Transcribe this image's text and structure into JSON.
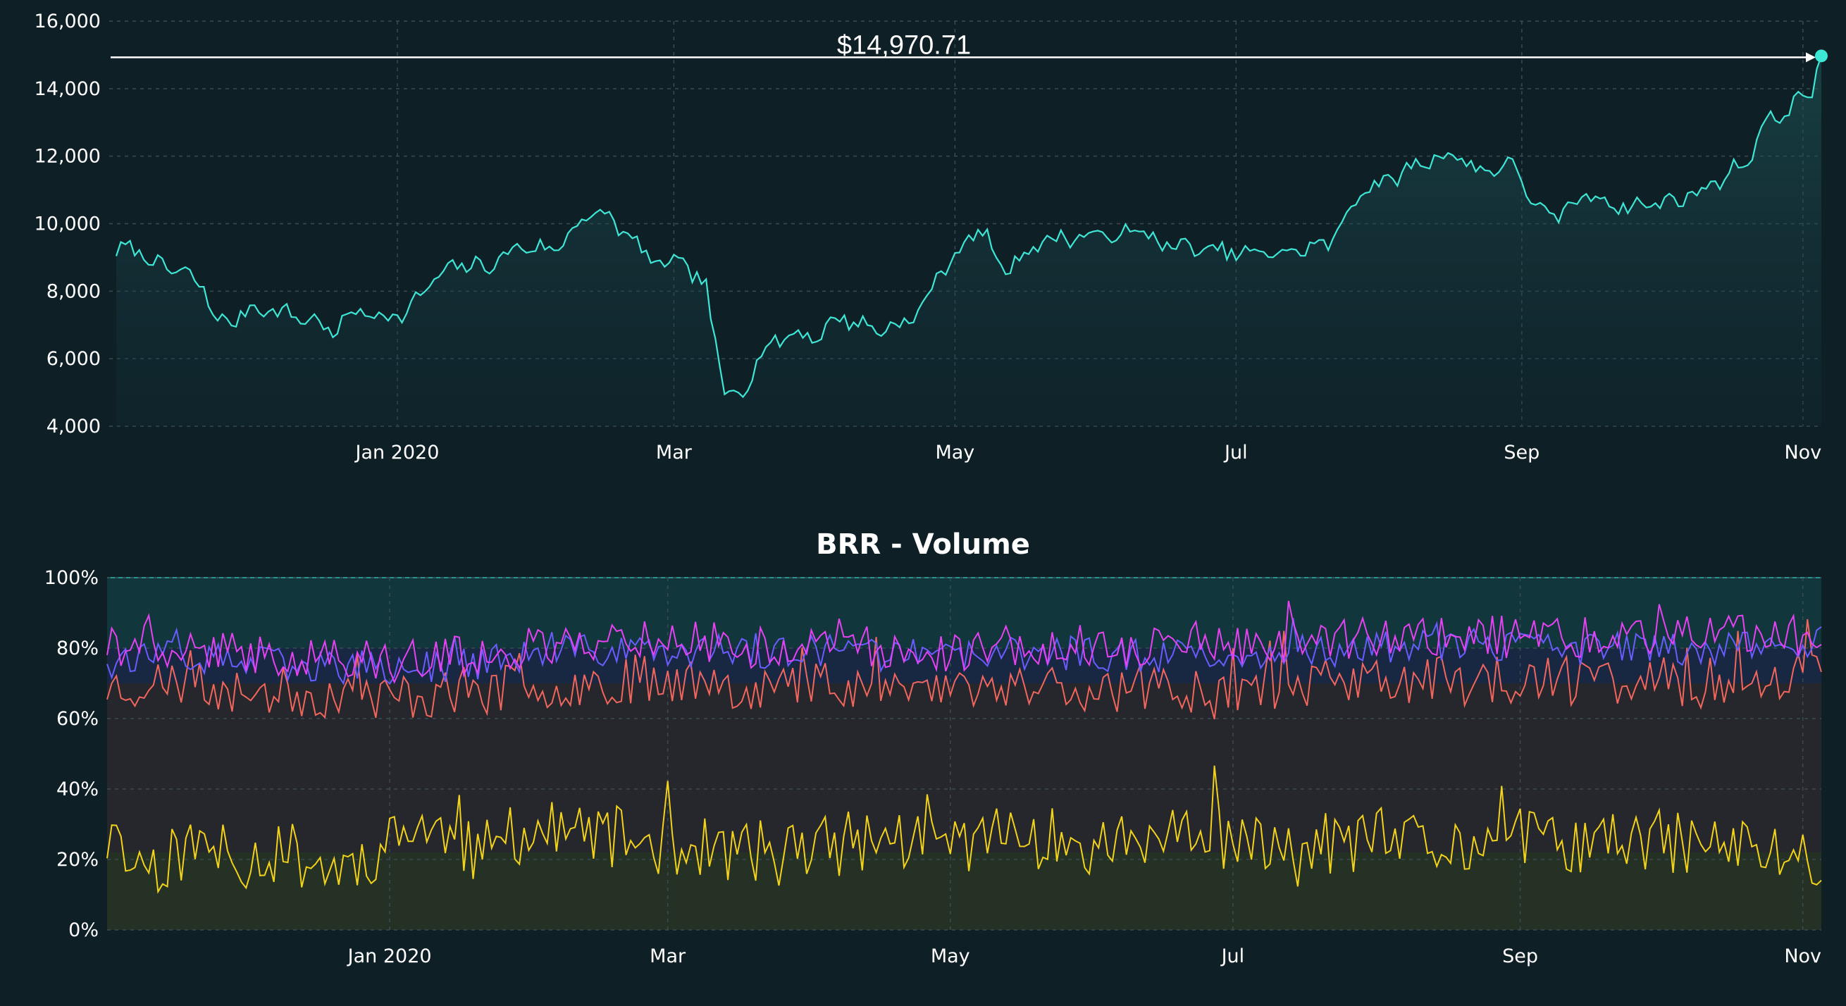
{
  "colors": {
    "background": "#0f1f26",
    "price_line": "#3ee6d6",
    "volume_yellow": "#f2d21b",
    "volume_red": "#f2665d",
    "volume_purple": "#6a5cff",
    "volume_magenta": "#e642f2",
    "grid": "#3a4b52"
  },
  "chart_data": [
    {
      "type": "area",
      "title": "",
      "x_range": [
        "2019-11-01",
        "2020-11-05"
      ],
      "ylim": [
        4000,
        16000
      ],
      "y_ticks": [
        4000,
        6000,
        8000,
        10000,
        12000,
        14000,
        16000
      ],
      "y_tick_labels": [
        "4,000",
        "6,000",
        "8,000",
        "10,000",
        "12,000",
        "14,000",
        "16,000"
      ],
      "x_ticks": [
        "2020-01-01",
        "2020-03-01",
        "2020-05-01",
        "2020-07-01",
        "2020-09-01",
        "2020-11-01"
      ],
      "x_tick_labels": [
        "Jan 2020",
        "Mar",
        "May",
        "Jul",
        "Sep",
        "Nov"
      ],
      "grid": true,
      "last_price_label": "$14,970.71",
      "series": [
        {
          "points": [
            [
              "2019-11-01",
              9150
            ],
            [
              "2019-11-05",
              9300
            ],
            [
              "2019-11-10",
              8750
            ],
            [
              "2019-11-15",
              8600
            ],
            [
              "2019-11-20",
              8100
            ],
            [
              "2019-11-22",
              7300
            ],
            [
              "2019-11-25",
              7000
            ],
            [
              "2019-11-30",
              7500
            ],
            [
              "2019-12-05",
              7450
            ],
            [
              "2019-12-10",
              7250
            ],
            [
              "2019-12-15",
              7100
            ],
            [
              "2019-12-18",
              6700
            ],
            [
              "2019-12-22",
              7400
            ],
            [
              "2019-12-28",
              7300
            ],
            [
              "2020-01-03",
              7300
            ],
            [
              "2020-01-07",
              8100
            ],
            [
              "2020-01-14",
              8800
            ],
            [
              "2020-01-20",
              8700
            ],
            [
              "2020-01-28",
              9350
            ],
            [
              "2020-02-04",
              9200
            ],
            [
              "2020-02-10",
              10150
            ],
            [
              "2020-02-15",
              10300
            ],
            [
              "2020-02-20",
              9650
            ],
            [
              "2020-02-26",
              8800
            ],
            [
              "2020-03-03",
              8850
            ],
            [
              "2020-03-08",
              8050
            ],
            [
              "2020-03-12",
              4950
            ],
            [
              "2020-03-16",
              5050
            ],
            [
              "2020-03-20",
              6200
            ],
            [
              "2020-03-26",
              6750
            ],
            [
              "2020-04-01",
              6650
            ],
            [
              "2020-04-06",
              7250
            ],
            [
              "2020-04-14",
              6850
            ],
            [
              "2020-04-22",
              7150
            ],
            [
              "2020-04-29",
              8800
            ],
            [
              "2020-05-07",
              9900
            ],
            [
              "2020-05-11",
              8600
            ],
            [
              "2020-05-20",
              9500
            ],
            [
              "2020-05-30",
              9650
            ],
            [
              "2020-06-05",
              9650
            ],
            [
              "2020-06-10",
              9800
            ],
            [
              "2020-06-15",
              9400
            ],
            [
              "2020-06-25",
              9200
            ],
            [
              "2020-07-05",
              9100
            ],
            [
              "2020-07-15",
              9200
            ],
            [
              "2020-07-22",
              9500
            ],
            [
              "2020-07-28",
              11000
            ],
            [
              "2020-08-02",
              11200
            ],
            [
              "2020-08-10",
              11800
            ],
            [
              "2020-08-17",
              12100
            ],
            [
              "2020-08-22",
              11600
            ],
            [
              "2020-08-31",
              11700
            ],
            [
              "2020-09-04",
              10400
            ],
            [
              "2020-09-08",
              10200
            ],
            [
              "2020-09-16",
              10900
            ],
            [
              "2020-09-22",
              10500
            ],
            [
              "2020-10-01",
              10600
            ],
            [
              "2020-10-09",
              10900
            ],
            [
              "2020-10-15",
              11400
            ],
            [
              "2020-10-20",
              11900
            ],
            [
              "2020-10-24",
              13000
            ],
            [
              "2020-10-28",
              13300
            ],
            [
              "2020-11-01",
              13750
            ],
            [
              "2020-11-03",
              14000
            ],
            [
              "2020-11-05",
              14970
            ]
          ]
        }
      ]
    },
    {
      "type": "line",
      "title": "BRR - Volume",
      "x_range": [
        "2019-11-01",
        "2020-11-05"
      ],
      "ylim": [
        0,
        100
      ],
      "y_ticks": [
        0,
        20,
        40,
        60,
        80,
        100
      ],
      "y_tick_labels": [
        "0%",
        "20%",
        "40%",
        "60%",
        "80%",
        "100%"
      ],
      "x_ticks": [
        "2020-01-01",
        "2020-03-01",
        "2020-05-01",
        "2020-07-01",
        "2020-09-01",
        "2020-11-01"
      ],
      "x_tick_labels": [
        "Jan 2020",
        "Mar",
        "May",
        "Jul",
        "Sep",
        "Nov"
      ],
      "grid": true,
      "series": [
        {
          "color": "#f2d21b",
          "points": [
            [
              "2019-11-01",
              25
            ],
            [
              "2019-11-10",
              18
            ],
            [
              "2019-11-20",
              24
            ],
            [
              "2019-11-30",
              20
            ],
            [
              "2019-12-10",
              22
            ],
            [
              "2019-12-20",
              17
            ],
            [
              "2020-01-01",
              24
            ],
            [
              "2020-01-08",
              30
            ],
            [
              "2020-01-20",
              21
            ],
            [
              "2020-01-30",
              28
            ],
            [
              "2020-02-15",
              27
            ],
            [
              "2020-03-01",
              24
            ],
            [
              "2020-03-15",
              22
            ],
            [
              "2020-04-01",
              23
            ],
            [
              "2020-04-15",
              26
            ],
            [
              "2020-05-01",
              25
            ],
            [
              "2020-05-15",
              27
            ],
            [
              "2020-06-01",
              24
            ],
            [
              "2020-06-15",
              26
            ],
            [
              "2020-07-01",
              25
            ],
            [
              "2020-07-15",
              21
            ],
            [
              "2020-08-01",
              26
            ],
            [
              "2020-08-15",
              23
            ],
            [
              "2020-09-01",
              26
            ],
            [
              "2020-09-15",
              24
            ],
            [
              "2020-10-01",
              25
            ],
            [
              "2020-10-15",
              24
            ],
            [
              "2020-11-05",
              20
            ]
          ]
        },
        {
          "color": "#f2665d",
          "points": [
            [
              "2019-11-01",
              69
            ],
            [
              "2019-11-15",
              70
            ],
            [
              "2019-12-01",
              68
            ],
            [
              "2019-12-15",
              67
            ],
            [
              "2020-01-01",
              66
            ],
            [
              "2020-01-20",
              68
            ],
            [
              "2020-02-10",
              70
            ],
            [
              "2020-03-01",
              72
            ],
            [
              "2020-03-20",
              69
            ],
            [
              "2020-04-10",
              70
            ],
            [
              "2020-05-01",
              68
            ],
            [
              "2020-05-20",
              70
            ],
            [
              "2020-06-10",
              68
            ],
            [
              "2020-07-01",
              69
            ],
            [
              "2020-07-20",
              70
            ],
            [
              "2020-08-10",
              71
            ],
            [
              "2020-09-01",
              70
            ],
            [
              "2020-09-20",
              71
            ],
            [
              "2020-10-10",
              70
            ],
            [
              "2020-11-05",
              74
            ]
          ]
        },
        {
          "color": "#6a5cff",
          "points": [
            [
              "2019-11-01",
              78
            ],
            [
              "2019-11-15",
              77
            ],
            [
              "2019-12-01",
              76
            ],
            [
              "2019-12-15",
              75
            ],
            [
              "2020-01-01",
              74
            ],
            [
              "2020-01-20",
              76
            ],
            [
              "2020-02-10",
              79
            ],
            [
              "2020-03-01",
              80
            ],
            [
              "2020-03-20",
              78
            ],
            [
              "2020-04-10",
              79
            ],
            [
              "2020-05-01",
              77
            ],
            [
              "2020-05-20",
              79
            ],
            [
              "2020-06-10",
              78
            ],
            [
              "2020-07-01",
              78
            ],
            [
              "2020-07-20",
              79
            ],
            [
              "2020-08-10",
              81
            ],
            [
              "2020-09-01",
              80
            ],
            [
              "2020-09-20",
              80
            ],
            [
              "2020-10-10",
              80
            ],
            [
              "2020-11-05",
              82
            ]
          ]
        },
        {
          "color": "#e642f2",
          "points": [
            [
              "2019-11-01",
              81
            ],
            [
              "2019-11-15",
              80
            ],
            [
              "2019-12-01",
              78
            ],
            [
              "2019-12-15",
              78
            ],
            [
              "2020-01-01",
              76
            ],
            [
              "2020-01-20",
              78
            ],
            [
              "2020-02-10",
              82
            ],
            [
              "2020-03-01",
              83
            ],
            [
              "2020-03-20",
              80
            ],
            [
              "2020-04-10",
              81
            ],
            [
              "2020-05-01",
              79
            ],
            [
              "2020-05-20",
              81
            ],
            [
              "2020-06-10",
              80
            ],
            [
              "2020-07-01",
              80
            ],
            [
              "2020-07-20",
              82
            ],
            [
              "2020-08-10",
              84
            ],
            [
              "2020-09-01",
              83
            ],
            [
              "2020-09-20",
              83
            ],
            [
              "2020-10-10",
              83
            ],
            [
              "2020-11-05",
              84
            ]
          ]
        }
      ]
    }
  ]
}
